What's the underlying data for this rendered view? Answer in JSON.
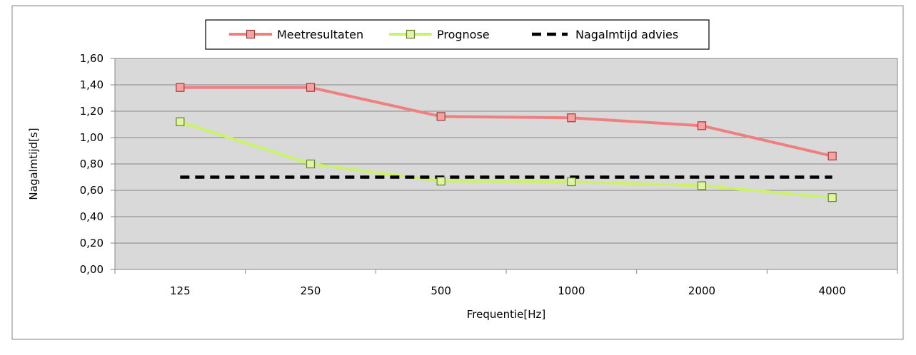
{
  "chart_data": {
    "type": "line",
    "categories": [
      "125",
      "250",
      "500",
      "1000",
      "2000",
      "4000"
    ],
    "series": [
      {
        "name": "Meetresultaten",
        "values": [
          1.38,
          1.38,
          1.16,
          1.15,
          1.09,
          0.86
        ],
        "color": "#f08080",
        "marker": "square",
        "marker_fill": "#f4a3a3",
        "marker_stroke": "#9e3a3a"
      },
      {
        "name": "Prognose",
        "values": [
          1.12,
          0.8,
          0.67,
          0.665,
          0.635,
          0.545
        ],
        "color": "#ccf26a",
        "marker": "square",
        "marker_fill": "#dff5a6",
        "marker_stroke": "#6a7d2a"
      },
      {
        "name": "Nagalmtijd advies",
        "values": [
          0.7,
          0.7,
          0.7,
          0.7,
          0.7,
          0.7
        ],
        "color": "#000000",
        "dashed": true
      }
    ],
    "y_ticks": [
      "0,00",
      "0,20",
      "0,40",
      "0,60",
      "0,80",
      "1,00",
      "1,20",
      "1,40",
      "1,60"
    ],
    "ylim": [
      0,
      1.6
    ],
    "xlabel": "Frequentie[Hz]",
    "ylabel": "Nagalmtijd[s]",
    "grid": true,
    "legend_position": "top-center",
    "plot_background": "#d9d9d9"
  }
}
